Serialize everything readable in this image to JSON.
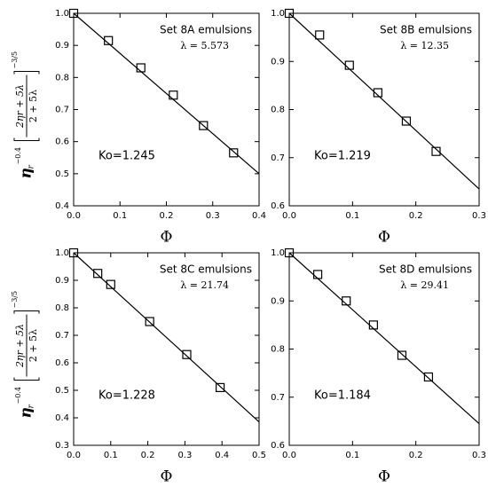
{
  "chart_data": [
    {
      "type": "scatter",
      "title": "Set 8A emulsions",
      "subtitle": "λ = 5.573",
      "annotation": "Ko=1.245",
      "xlabel": "Φ",
      "ylabel": {
        "base": "η",
        "base_sub": "r",
        "exp": "−0.4",
        "numerator": "2ηr + 5λ",
        "denominator": "2 + 5λ",
        "outer_exp": "−3/5"
      },
      "x": [
        0,
        0.075,
        0.145,
        0.215,
        0.28,
        0.345
      ],
      "values": [
        1.0,
        0.915,
        0.83,
        0.745,
        0.65,
        0.565
      ],
      "fit_x": [
        0,
        0.4
      ],
      "fit_values": [
        1.0,
        0.5
      ],
      "color": "#000000",
      "xlim": [
        0,
        0.4
      ],
      "ylim": [
        0.4,
        1.0
      ],
      "xticks": [
        {
          "value": 0,
          "label": "0.0"
        },
        0.1,
        0.2,
        0.3,
        0.4
      ],
      "yticks": [
        0.4,
        0.5,
        0.6,
        0.7,
        0.8,
        0.9,
        {
          "value": 1,
          "label": "1.0"
        }
      ]
    },
    {
      "type": "scatter",
      "title": "Set 8B emulsions",
      "subtitle": "λ = 12.35",
      "annotation": "Ko=1.219",
      "xlabel": "Φ",
      "x": [
        0,
        0.048,
        0.095,
        0.14,
        0.185,
        0.232
      ],
      "values": [
        1.0,
        0.955,
        0.892,
        0.835,
        0.776,
        0.713
      ],
      "fit_x": [
        0,
        0.3
      ],
      "fit_values": [
        1.0,
        0.635
      ],
      "color": "#000000",
      "xlim": [
        0,
        0.3
      ],
      "ylim": [
        0.6,
        1.0
      ],
      "xticks": [
        {
          "value": 0,
          "label": "0.0"
        },
        0.1,
        0.2,
        0.3
      ],
      "yticks": [
        0.6,
        0.7,
        0.8,
        0.9,
        {
          "value": 1,
          "label": "1.0"
        }
      ]
    },
    {
      "type": "scatter",
      "title": "Set 8C emulsions",
      "subtitle": "λ = 21.74",
      "annotation": "Ko=1.228",
      "xlabel": "Φ",
      "ylabel": {
        "base": "η",
        "base_sub": "r",
        "exp": "−0.4",
        "numerator": "2ηr + 5λ",
        "denominator": "2 + 5λ",
        "outer_exp": "−3/5"
      },
      "x": [
        0,
        0.065,
        0.1,
        0.205,
        0.305,
        0.395
      ],
      "values": [
        1.0,
        0.925,
        0.885,
        0.75,
        0.63,
        0.51
      ],
      "fit_x": [
        0,
        0.5
      ],
      "fit_values": [
        1.0,
        0.385
      ],
      "color": "#000000",
      "xlim": [
        0,
        0.5
      ],
      "ylim": [
        0.3,
        1.0
      ],
      "xticks": [
        {
          "value": 0,
          "label": "0.0"
        },
        0.1,
        0.2,
        0.3,
        0.4,
        0.5
      ],
      "yticks": [
        0.3,
        0.4,
        0.5,
        0.6,
        0.7,
        0.8,
        0.9,
        {
          "value": 1,
          "label": "1.0"
        }
      ]
    },
    {
      "type": "scatter",
      "title": "Set 8D emulsions",
      "subtitle": "λ = 29.41",
      "annotation": "Ko=1.184",
      "xlabel": "Φ",
      "x": [
        0,
        0.045,
        0.09,
        0.133,
        0.178,
        0.22
      ],
      "values": [
        1.0,
        0.955,
        0.9,
        0.85,
        0.787,
        0.742
      ],
      "fit_x": [
        0,
        0.3
      ],
      "fit_values": [
        1.0,
        0.645
      ],
      "color": "#000000",
      "xlim": [
        0,
        0.3
      ],
      "ylim": [
        0.6,
        1.0
      ],
      "xticks": [
        {
          "value": 0,
          "label": "0.0"
        },
        0.1,
        0.2,
        0.3
      ],
      "yticks": [
        0.6,
        0.7,
        0.8,
        0.9,
        {
          "value": 1,
          "label": "1.0"
        }
      ]
    }
  ]
}
